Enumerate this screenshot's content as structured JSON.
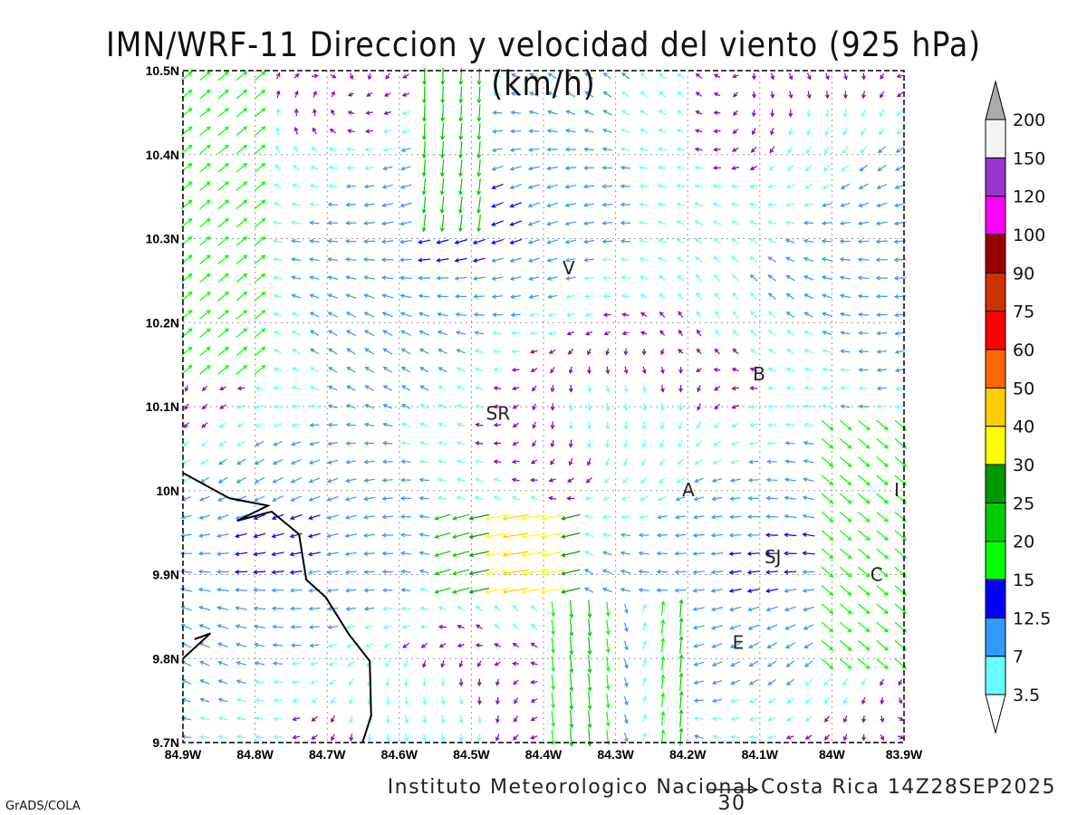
{
  "title": "IMN/WRF-11 Direccion y velocidad del viento (925 hPa)(km/h)",
  "footer": "Instituto Meteorologico Nacional Costa Rica 14Z28SEP2025",
  "credit": "GrADS/COLA",
  "reference_vector": {
    "label": "30",
    "value": 30
  },
  "chart_data": {
    "type": "vector-field",
    "lon_range": [
      -84.9,
      -83.9
    ],
    "lat_range": [
      9.7,
      10.5
    ],
    "x_ticks": [
      "84.9W",
      "84.8W",
      "84.7W",
      "84.6W",
      "84.5W",
      "84.4W",
      "84.3W",
      "84.2W",
      "84.1W",
      "84W",
      "83.9W"
    ],
    "y_ticks": [
      "10.5N",
      "10.4N",
      "10.3N",
      "10.2N",
      "10.1N",
      "10N",
      "9.9N",
      "9.8N",
      "9.7N"
    ],
    "grid": true,
    "colorbar": {
      "levels": [
        "3.5",
        "7",
        "12.5",
        "15",
        "20",
        "25",
        "30",
        "40",
        "50",
        "60",
        "75",
        "90",
        "100",
        "120",
        "150",
        "200"
      ],
      "colors": [
        "#66ffff",
        "#3399ff",
        "#0000ff",
        "#00ff00",
        "#00cc00",
        "#009900",
        "#ffff00",
        "#ffcc00",
        "#ff6600",
        "#ff0000",
        "#cc3300",
        "#990000",
        "#ff00ff",
        "#9933cc",
        "#f4f4f4"
      ],
      "under_color": "#ffffff",
      "over_color": "#aaaaaa"
    },
    "towns": [
      {
        "label": "V",
        "lon": -84.365,
        "lat": 10.265
      },
      {
        "label": "B",
        "lon": -84.101,
        "lat": 10.139
      },
      {
        "label": "SR",
        "lon": -84.463,
        "lat": 10.092
      },
      {
        "label": "A",
        "lon": -84.199,
        "lat": 10.001
      },
      {
        "label": "SJ",
        "lon": -84.082,
        "lat": 9.921
      },
      {
        "label": "C",
        "lon": -83.938,
        "lat": 9.9
      },
      {
        "label": "E",
        "lon": -84.13,
        "lat": 9.819
      },
      {
        "label": "I",
        "lon": -83.91,
        "lat": 10.001
      }
    ],
    "coastline": [
      [
        [
          -84.9,
          10.021
        ],
        [
          -84.836,
          9.991
        ],
        [
          -84.782,
          9.982
        ],
        [
          -84.825,
          9.964
        ],
        [
          -84.777,
          9.975
        ],
        [
          -84.739,
          9.948
        ],
        [
          -84.729,
          9.894
        ],
        [
          -84.702,
          9.873
        ],
        [
          -84.67,
          9.829
        ],
        [
          -84.641,
          9.797
        ],
        [
          -84.639,
          9.732
        ],
        [
          -84.651,
          9.7
        ]
      ],
      [
        [
          -84.9,
          9.8
        ],
        [
          -84.862,
          9.83
        ],
        [
          -84.884,
          9.823
        ]
      ]
    ]
  }
}
